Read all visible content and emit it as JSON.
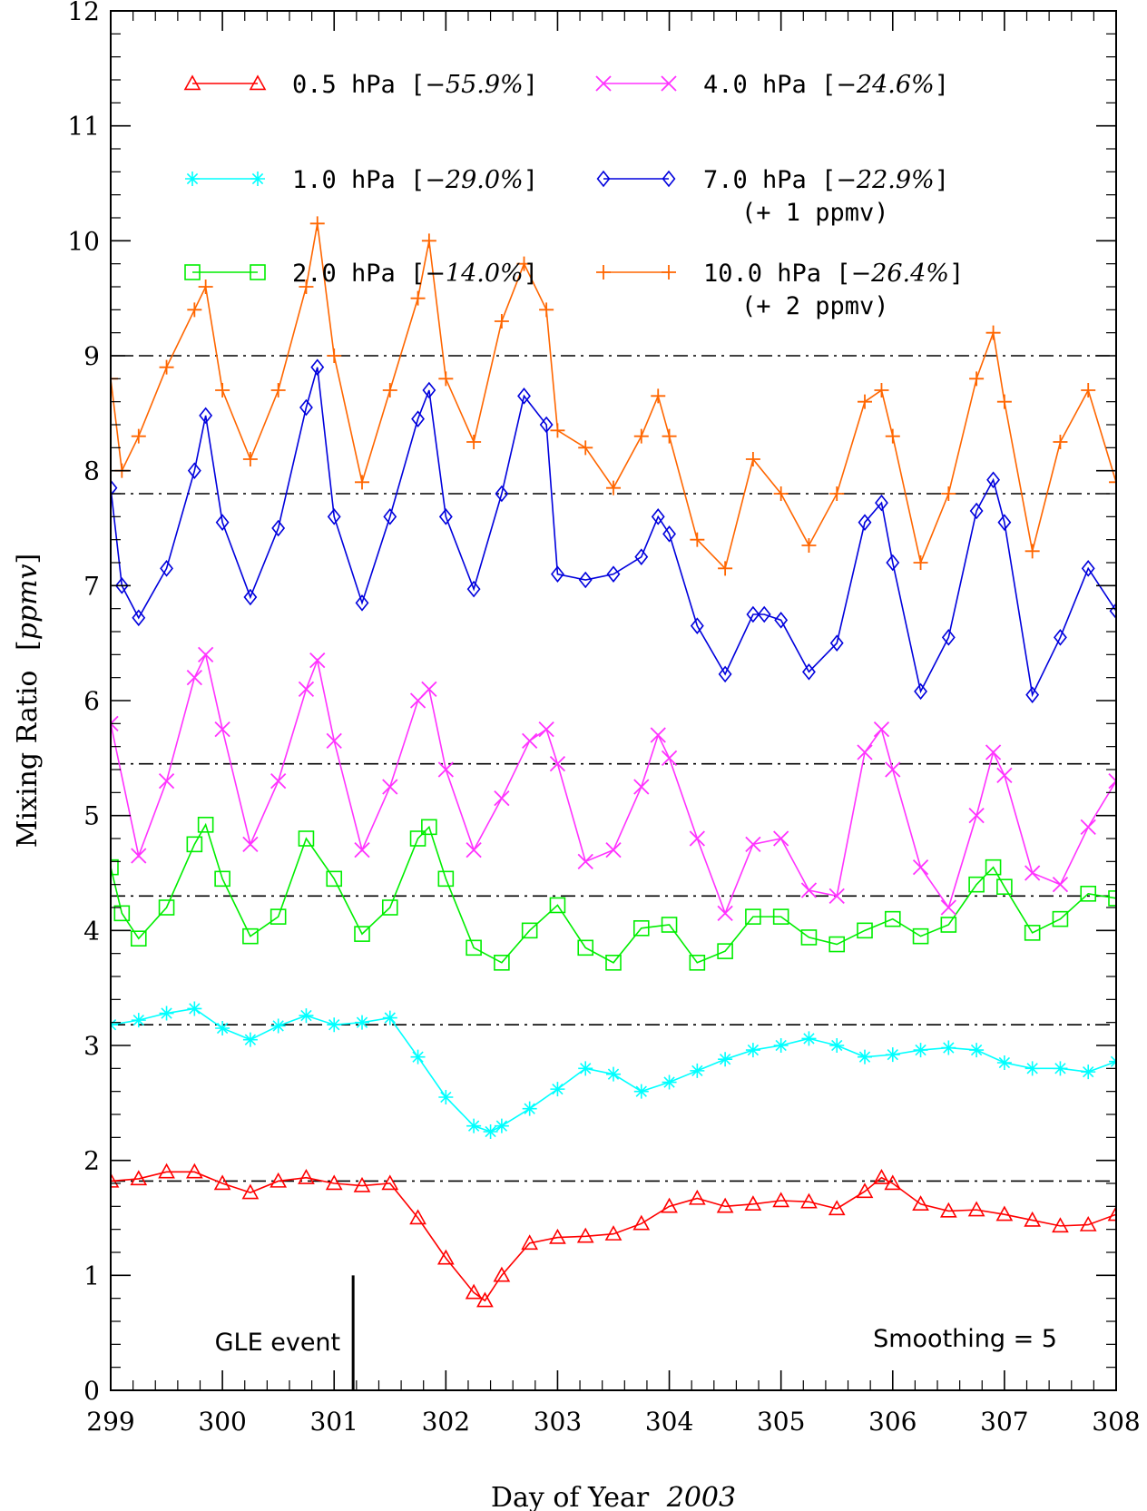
{
  "chart_data": {
    "type": "line",
    "xlabel": "Day of Year",
    "xlabel_year": "2003",
    "ylabel": "Mixing Ratio",
    "ylabel_unit": "ppmv",
    "xlim": [
      299,
      308
    ],
    "ylim": [
      0,
      12
    ],
    "x_ticks": [
      "299",
      "300",
      "301",
      "302",
      "303",
      "304",
      "305",
      "306",
      "307",
      "308"
    ],
    "y_ticks": [
      "0",
      "1",
      "2",
      "3",
      "4",
      "5",
      "6",
      "7",
      "8",
      "9",
      "10",
      "11",
      "12"
    ],
    "reference_lines": [
      1.82,
      3.18,
      4.3,
      5.45,
      7.8,
      9.0
    ],
    "grid": false,
    "annotations": {
      "event_label": "GLE event",
      "event_day": 301.17,
      "smoothing": "Smoothing = 5"
    },
    "series": [
      {
        "name": "0.5 hPa",
        "change": "−55.9%",
        "offset_note": "",
        "color": "#ff0000",
        "marker": "triangle",
        "x": [
          299,
          299.25,
          299.5,
          299.75,
          300,
          300.25,
          300.5,
          300.75,
          301,
          301.25,
          301.5,
          301.75,
          302,
          302.25,
          302.35,
          302.5,
          302.75,
          303,
          303.25,
          303.5,
          303.75,
          304,
          304.25,
          304.5,
          304.75,
          305,
          305.25,
          305.5,
          305.75,
          305.9,
          306,
          306.25,
          306.5,
          306.75,
          307,
          307.25,
          307.5,
          307.75,
          308
        ],
        "y": [
          1.82,
          1.84,
          1.9,
          1.9,
          1.8,
          1.72,
          1.82,
          1.85,
          1.8,
          1.78,
          1.8,
          1.5,
          1.15,
          0.85,
          0.78,
          1.0,
          1.28,
          1.33,
          1.34,
          1.36,
          1.45,
          1.6,
          1.67,
          1.6,
          1.62,
          1.65,
          1.64,
          1.58,
          1.73,
          1.85,
          1.8,
          1.62,
          1.56,
          1.57,
          1.53,
          1.48,
          1.43,
          1.44,
          1.53
        ]
      },
      {
        "name": "1.0 hPa",
        "change": "−29.0%",
        "offset_note": "",
        "color": "#00ffff",
        "marker": "asterisk",
        "x": [
          299,
          299.25,
          299.5,
          299.75,
          300,
          300.25,
          300.5,
          300.75,
          301,
          301.25,
          301.5,
          301.75,
          302,
          302.25,
          302.4,
          302.5,
          302.75,
          303,
          303.25,
          303.5,
          303.75,
          304,
          304.25,
          304.5,
          304.75,
          305,
          305.25,
          305.5,
          305.75,
          306,
          306.25,
          306.5,
          306.75,
          307,
          307.25,
          307.5,
          307.75,
          308
        ],
        "y": [
          3.18,
          3.22,
          3.28,
          3.32,
          3.15,
          3.05,
          3.17,
          3.26,
          3.18,
          3.2,
          3.24,
          2.9,
          2.55,
          2.3,
          2.25,
          2.3,
          2.45,
          2.62,
          2.8,
          2.75,
          2.6,
          2.68,
          2.78,
          2.88,
          2.96,
          3.0,
          3.06,
          3.0,
          2.9,
          2.92,
          2.96,
          2.98,
          2.96,
          2.85,
          2.8,
          2.8,
          2.77,
          2.86
        ]
      },
      {
        "name": "2.0 hPa",
        "change": "−14.0%",
        "offset_note": "",
        "color": "#00ee00",
        "marker": "square",
        "x": [
          299,
          299.1,
          299.25,
          299.5,
          299.75,
          299.85,
          300,
          300.25,
          300.5,
          300.75,
          301,
          301.25,
          301.5,
          301.75,
          301.85,
          302,
          302.25,
          302.5,
          302.75,
          303,
          303.25,
          303.5,
          303.75,
          304,
          304.25,
          304.5,
          304.75,
          305,
          305.25,
          305.5,
          305.75,
          306,
          306.25,
          306.5,
          306.75,
          306.9,
          307,
          307.25,
          307.5,
          307.75,
          308
        ],
        "y": [
          4.55,
          4.15,
          3.93,
          4.2,
          4.75,
          4.92,
          4.45,
          3.95,
          4.12,
          4.8,
          4.45,
          3.97,
          4.2,
          4.8,
          4.9,
          4.45,
          3.85,
          3.72,
          4.0,
          4.22,
          3.85,
          3.72,
          4.02,
          4.05,
          3.72,
          3.82,
          4.12,
          4.12,
          3.94,
          3.88,
          4.0,
          4.1,
          3.95,
          4.05,
          4.4,
          4.55,
          4.38,
          3.98,
          4.1,
          4.32,
          4.28
        ]
      },
      {
        "name": "4.0 hPa",
        "change": "−24.6%",
        "offset_note": "",
        "color": "#ff33ff",
        "marker": "cross",
        "x": [
          299,
          299.25,
          299.5,
          299.75,
          299.85,
          300,
          300.25,
          300.5,
          300.75,
          300.85,
          301,
          301.25,
          301.5,
          301.75,
          301.85,
          302,
          302.25,
          302.5,
          302.75,
          302.9,
          303,
          303.25,
          303.5,
          303.75,
          303.9,
          304,
          304.25,
          304.5,
          304.75,
          305,
          305.25,
          305.5,
          305.75,
          305.9,
          306,
          306.25,
          306.5,
          306.75,
          306.9,
          307,
          307.25,
          307.5,
          307.75,
          308
        ],
        "y": [
          5.8,
          4.65,
          5.3,
          6.2,
          6.4,
          5.75,
          4.75,
          5.3,
          6.1,
          6.35,
          5.65,
          4.7,
          5.25,
          6.0,
          6.1,
          5.4,
          4.7,
          5.15,
          5.65,
          5.75,
          5.45,
          4.6,
          4.7,
          5.25,
          5.7,
          5.5,
          4.8,
          4.15,
          4.75,
          4.8,
          4.35,
          4.3,
          5.55,
          5.75,
          5.4,
          4.55,
          4.2,
          5.0,
          5.55,
          5.35,
          4.5,
          4.4,
          4.9,
          5.3
        ]
      },
      {
        "name": "7.0 hPa",
        "change": "−22.9%",
        "offset_note": "(+ 1 ppmv)",
        "color": "#0000dd",
        "marker": "diamond",
        "x": [
          299,
          299.1,
          299.25,
          299.5,
          299.75,
          299.85,
          300,
          300.25,
          300.5,
          300.75,
          300.85,
          301,
          301.25,
          301.5,
          301.75,
          301.85,
          302,
          302.25,
          302.5,
          302.7,
          302.9,
          303,
          303.25,
          303.5,
          303.75,
          303.9,
          304,
          304.25,
          304.5,
          304.75,
          304.85,
          305,
          305.25,
          305.5,
          305.75,
          305.9,
          306,
          306.25,
          306.5,
          306.75,
          306.9,
          307,
          307.25,
          307.5,
          307.75,
          308
        ],
        "y": [
          7.85,
          7.0,
          6.72,
          7.15,
          8.0,
          8.48,
          7.55,
          6.9,
          7.5,
          8.55,
          8.9,
          7.6,
          6.85,
          7.6,
          8.45,
          8.7,
          7.6,
          6.97,
          7.8,
          8.65,
          8.4,
          7.1,
          7.05,
          7.1,
          7.25,
          7.6,
          7.45,
          6.65,
          6.23,
          6.75,
          6.75,
          6.7,
          6.25,
          6.5,
          7.55,
          7.72,
          7.2,
          6.08,
          6.55,
          7.65,
          7.92,
          7.55,
          6.05,
          6.55,
          7.15,
          6.78
        ]
      },
      {
        "name": "10.0 hPa",
        "change": "−26.4%",
        "offset_note": "(+ 2 ppmv)",
        "color": "#ff6600",
        "marker": "plus",
        "x": [
          299,
          299.1,
          299.25,
          299.5,
          299.75,
          299.85,
          300,
          300.25,
          300.5,
          300.75,
          300.85,
          301,
          301.25,
          301.5,
          301.75,
          301.85,
          302,
          302.25,
          302.5,
          302.7,
          302.9,
          303,
          303.25,
          303.5,
          303.75,
          303.9,
          304,
          304.25,
          304.5,
          304.75,
          305,
          305.25,
          305.5,
          305.75,
          305.9,
          306,
          306.25,
          306.5,
          306.75,
          306.9,
          307,
          307.25,
          307.5,
          307.75,
          308
        ],
        "y": [
          8.8,
          8.0,
          8.3,
          8.9,
          9.4,
          9.6,
          8.7,
          8.1,
          8.7,
          9.6,
          10.15,
          9.0,
          7.9,
          8.7,
          9.5,
          10.0,
          8.8,
          8.25,
          9.3,
          9.8,
          9.4,
          8.35,
          8.2,
          7.85,
          8.3,
          8.65,
          8.3,
          7.4,
          7.15,
          8.1,
          7.8,
          7.35,
          7.8,
          8.6,
          8.7,
          8.3,
          7.2,
          7.8,
          8.8,
          9.2,
          8.6,
          7.3,
          8.25,
          8.7,
          7.9
        ]
      }
    ]
  }
}
